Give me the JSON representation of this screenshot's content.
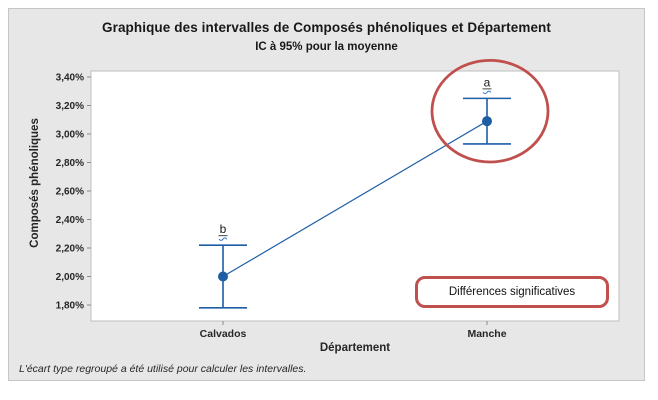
{
  "figure": {
    "footnote": "L'écart type regroupé a été utilisé pour calculer les intervalles."
  },
  "chart_data": {
    "type": "interval-plot",
    "title": "Graphique des intervalles de Composés phénoliques et Département",
    "subtitle": "IC à 95% pour la moyenne",
    "xlabel": "Département",
    "ylabel": "Composés phénoliques",
    "categories": [
      "Calvados",
      "Manche"
    ],
    "points": [
      {
        "category": "Calvados",
        "mean": 2.0,
        "ci_low": 1.78,
        "ci_high": 2.22,
        "group_letter": "b"
      },
      {
        "category": "Manche",
        "mean": 3.09,
        "ci_low": 2.93,
        "ci_high": 3.25,
        "group_letter": "a"
      }
    ],
    "ylim": [
      1.8,
      3.4
    ],
    "ytick_step": 0.2,
    "ytick_format": "percent-fr-2dec",
    "connect_line": true,
    "grid": false,
    "annotations": {
      "circled_category": "Manche",
      "note_box": "Différences significatives"
    },
    "colors": {
      "series_blue": "#1d5da5",
      "annotation_red": "#c0504d",
      "squiggle_blue": "#2f6fce",
      "plot_bg": "#ffffff",
      "figure_bg": "#e7e7e7"
    }
  }
}
